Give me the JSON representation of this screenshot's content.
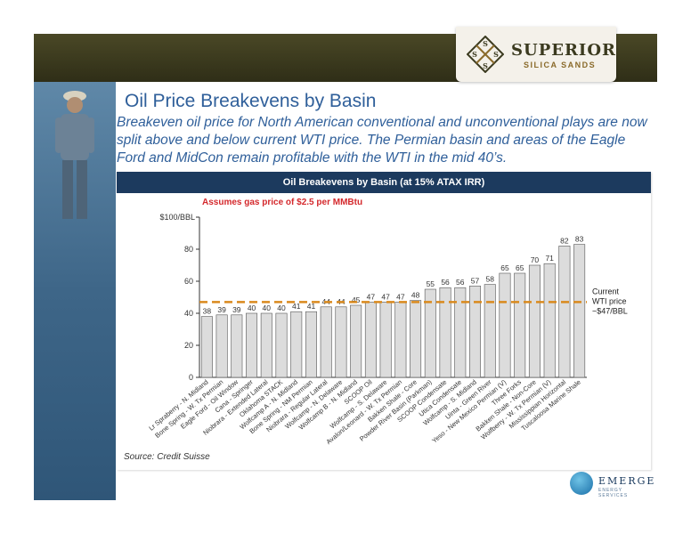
{
  "logo": {
    "line1": "SUPERIOR",
    "line2": "SILICA SANDS"
  },
  "slide": {
    "title": "Oil Price Breakevens by Basin",
    "subtitle": "Breakeven oil price for North American conventional and unconventional plays are now split above and below current WTI price. The Permian basin and areas of the Eagle Ford and MidCon remain profitable with the WTI in the mid 40’s."
  },
  "partner_logo": {
    "name": "EMERGE",
    "tagline": "ENERGY SERVICES"
  },
  "colors": {
    "header": "#1c3a5e",
    "title": "#2f5f9a",
    "bar": "#dcdcdc",
    "bar_stroke": "#555555",
    "wti_line": "#d98a1e",
    "note": "#d4282c"
  },
  "chart_data": {
    "type": "bar",
    "title": "Oil Breakevens by Basin (at 15% ATAX IRR)",
    "note": "Assumes gas price of $2.5 per MMBtu",
    "source": "Source: Credit Suisse",
    "y_top_label": "$100/BBL",
    "ylim": [
      0,
      100
    ],
    "y_ticks": [
      0,
      20,
      40,
      60,
      80
    ],
    "grid": false,
    "categories": [
      "Lr Spraberry - N. Midland",
      "Bone Spring - W. Tx Permian",
      "Eagle Ford - Oil Window",
      "Cana - Springer",
      "Niobrara - Extended Lateral",
      "Oklahoma STACK",
      "Wolfcamp A - N. Midland",
      "Bone Spring - NM Permian",
      "Niobrara - Regular Lateral",
      "Wolfcamp - N. Delaware",
      "Wolfcamp B - N. Midland",
      "SCOOP Oil",
      "Wolfcamp - S. Delaware",
      "Avalon/Leonard - W. Tx Permian",
      "Bakken Shale - Core",
      "Powder River Basin (Parkman)",
      "SCOOP Condensate",
      "Utica Condensate",
      "Wolfcamp - S. Midland",
      "Uinta - Green River",
      "Yeso - New Mexico Permian (V)",
      "Three Forks",
      "Bakken Shale - Non-Core",
      "Wolfberry - W. Tx Permian (V)",
      "Mississippian Horizontal",
      "Tuscaloosa Marine Shale"
    ],
    "values": [
      38,
      39,
      39,
      40,
      40,
      40,
      41,
      41,
      44,
      44,
      45,
      47,
      47,
      47,
      48,
      55,
      56,
      56,
      57,
      58,
      65,
      65,
      70,
      71,
      82,
      83
    ],
    "reference_line": {
      "value": 47,
      "label_lines": [
        "Current",
        "WTI price",
        "~$47/BBL"
      ]
    }
  }
}
